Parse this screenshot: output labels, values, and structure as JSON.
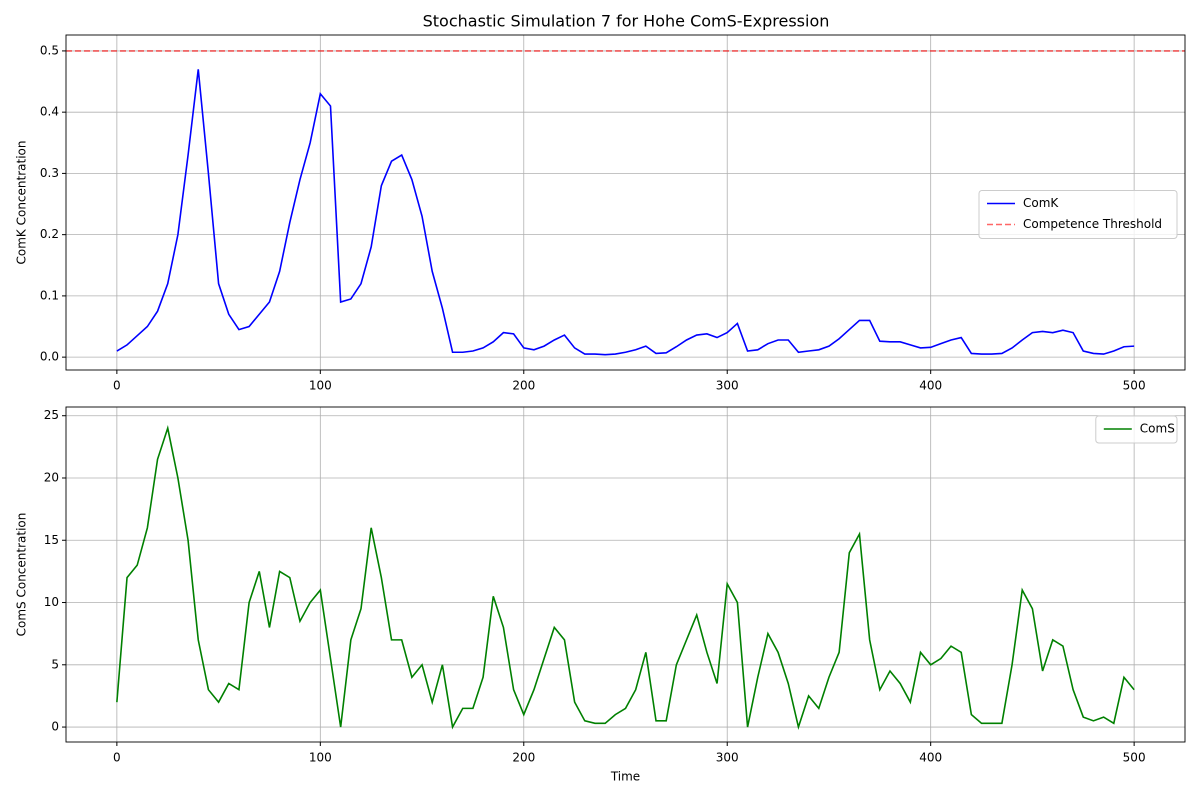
{
  "chart_data": [
    {
      "type": "line",
      "title": "Stochastic Simulation 7 for Hohe ComS-Expression",
      "ylabel": "ComK Concentration",
      "x": [
        0,
        5,
        10,
        15,
        20,
        25,
        30,
        35,
        40,
        45,
        50,
        55,
        60,
        65,
        70,
        75,
        80,
        85,
        90,
        95,
        100,
        105,
        110,
        115,
        120,
        125,
        130,
        135,
        140,
        145,
        150,
        155,
        160,
        165,
        170,
        175,
        180,
        185,
        190,
        195,
        200,
        205,
        210,
        215,
        220,
        225,
        230,
        235,
        240,
        245,
        250,
        255,
        260,
        265,
        270,
        275,
        280,
        285,
        290,
        295,
        300,
        305,
        310,
        315,
        320,
        325,
        330,
        335,
        340,
        345,
        350,
        355,
        360,
        365,
        370,
        375,
        380,
        385,
        390,
        395,
        400,
        405,
        410,
        415,
        420,
        425,
        430,
        435,
        440,
        445,
        450,
        455,
        460,
        465,
        470,
        475,
        480,
        485,
        490,
        495,
        500
      ],
      "series": [
        {
          "name": "ComK",
          "color": "#0000ff",
          "values": [
            0.01,
            0.02,
            0.035,
            0.05,
            0.075,
            0.12,
            0.2,
            0.33,
            0.47,
            0.3,
            0.12,
            0.07,
            0.045,
            0.05,
            0.07,
            0.09,
            0.14,
            0.22,
            0.29,
            0.35,
            0.43,
            0.41,
            0.09,
            0.095,
            0.12,
            0.18,
            0.28,
            0.32,
            0.33,
            0.29,
            0.23,
            0.14,
            0.08,
            0.008,
            0.008,
            0.01,
            0.015,
            0.025,
            0.04,
            0.038,
            0.015,
            0.012,
            0.018,
            0.028,
            0.036,
            0.015,
            0.005,
            0.005,
            0.004,
            0.005,
            0.008,
            0.012,
            0.018,
            0.006,
            0.007,
            0.017,
            0.028,
            0.036,
            0.038,
            0.032,
            0.04,
            0.055,
            0.01,
            0.012,
            0.022,
            0.028,
            0.028,
            0.008,
            0.01,
            0.012,
            0.018,
            0.03,
            0.045,
            0.06,
            0.06,
            0.026,
            0.025,
            0.025,
            0.02,
            0.015,
            0.016,
            0.022,
            0.028,
            0.032,
            0.006,
            0.005,
            0.005,
            0.006,
            0.015,
            0.028,
            0.04,
            0.042,
            0.04,
            0.044,
            0.04,
            0.01,
            0.006,
            0.005,
            0.01,
            0.017,
            0.018
          ]
        }
      ],
      "hlines": [
        {
          "name": "Competence Threshold",
          "color": "#ff0000",
          "value": 0.5
        }
      ],
      "xlim": [
        -25,
        525
      ],
      "xticks": [
        0,
        100,
        200,
        300,
        400,
        500
      ],
      "ylim": [
        -0.021,
        0.526
      ],
      "yticks": [
        {
          "value": 0,
          "label": "0.0"
        },
        0.1,
        0.2,
        0.3,
        0.4,
        0.5
      ],
      "grid": true,
      "legend": "center right"
    },
    {
      "type": "line",
      "ylabel": "ComS Concentration",
      "xlabel": "Time",
      "x": [
        0,
        5,
        10,
        15,
        20,
        25,
        30,
        35,
        40,
        45,
        50,
        55,
        60,
        65,
        70,
        75,
        80,
        85,
        90,
        95,
        100,
        105,
        110,
        115,
        120,
        125,
        130,
        135,
        140,
        145,
        150,
        155,
        160,
        165,
        170,
        175,
        180,
        185,
        190,
        195,
        200,
        205,
        210,
        215,
        220,
        225,
        230,
        235,
        240,
        245,
        250,
        255,
        260,
        265,
        270,
        275,
        280,
        285,
        290,
        295,
        300,
        305,
        310,
        315,
        320,
        325,
        330,
        335,
        340,
        345,
        350,
        355,
        360,
        365,
        370,
        375,
        380,
        385,
        390,
        395,
        400,
        405,
        410,
        415,
        420,
        425,
        430,
        435,
        440,
        445,
        450,
        455,
        460,
        465,
        470,
        475,
        480,
        485,
        490,
        495,
        500
      ],
      "series": [
        {
          "name": "ComS",
          "color": "#008000",
          "values": [
            2,
            12,
            13,
            16,
            21.5,
            24,
            20,
            15,
            7,
            3,
            2,
            3.5,
            3,
            10,
            12.5,
            8,
            12.5,
            12,
            8.5,
            10,
            11,
            5.5,
            0,
            7,
            9.5,
            16,
            12,
            7,
            7,
            4,
            5,
            2,
            5,
            0,
            1.5,
            1.5,
            4,
            10.5,
            8,
            3,
            1,
            3,
            5.5,
            8,
            7,
            2,
            0.5,
            0.3,
            0.3,
            1,
            1.5,
            3,
            6,
            0.5,
            0.5,
            5,
            7,
            9,
            6,
            3.5,
            11.5,
            10,
            0,
            4,
            7.5,
            6,
            3.5,
            0,
            2.5,
            1.5,
            4,
            6,
            14,
            15.5,
            7,
            3,
            4.5,
            3.5,
            2,
            6,
            5,
            5.5,
            6.5,
            6,
            1,
            0.3,
            0.3,
            0.3,
            5,
            11,
            9.5,
            4.5,
            7,
            6.5,
            3,
            0.8,
            0.5,
            0.8,
            0.3,
            4,
            3
          ]
        }
      ],
      "xlim": [
        -25,
        525
      ],
      "xticks": [
        0,
        100,
        200,
        300,
        400,
        500
      ],
      "ylim": [
        -1.2,
        25.7
      ],
      "yticks": [
        0,
        5,
        10,
        15,
        20,
        25
      ],
      "grid": true,
      "legend": "upper right"
    }
  ]
}
